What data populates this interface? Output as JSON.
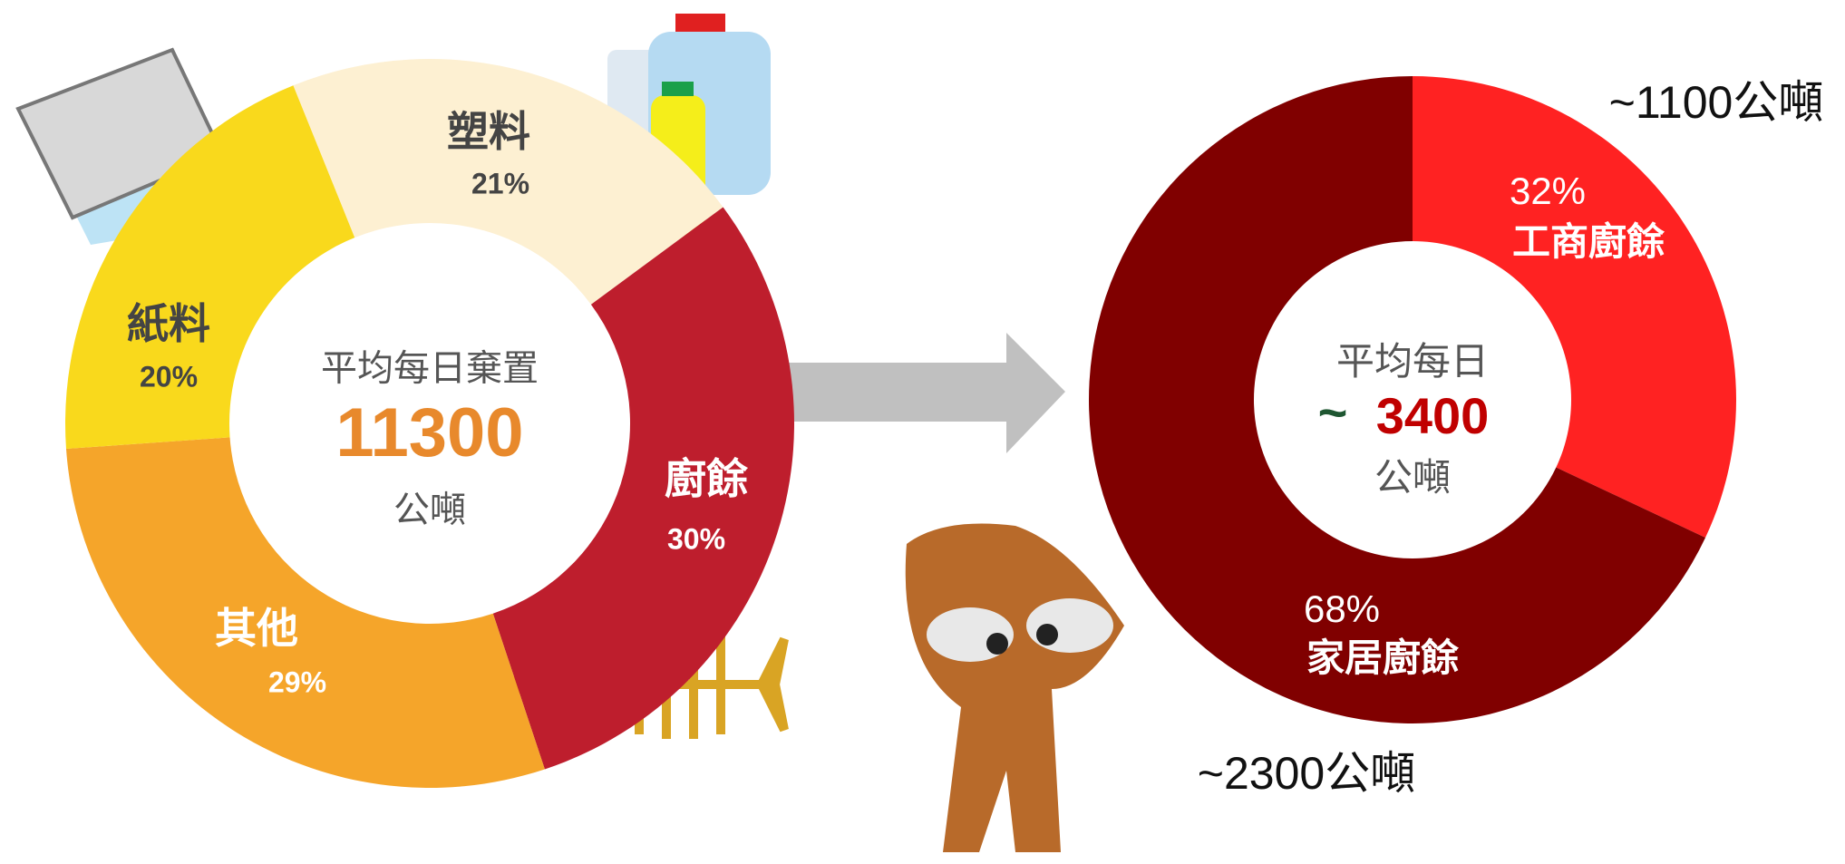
{
  "chart_data": [
    {
      "type": "donut",
      "center_title": "平均每日棄置",
      "center_value": 11300,
      "center_unit": "公噸",
      "categories": [
        "塑料",
        "廚餘",
        "其他",
        "紙料"
      ],
      "values": [
        21,
        30,
        29,
        20
      ],
      "value_labels": [
        "21%",
        "30%",
        "29%",
        "20%"
      ],
      "colors": [
        "#fdf0d2",
        "#be1e2d",
        "#f5a52a",
        "#f9d91c"
      ]
    },
    {
      "type": "donut",
      "center_title": "平均每日",
      "center_prefix": "~",
      "center_value": 3400,
      "center_unit": "公噸",
      "categories": [
        "工商廚餘",
        "家居廚餘"
      ],
      "values": [
        32,
        68
      ],
      "value_labels": [
        "32%",
        "68%"
      ],
      "amount_labels": [
        "~1100公噸",
        "~2300公噸"
      ],
      "colors": [
        "#ff2222",
        "#800000"
      ]
    }
  ]
}
